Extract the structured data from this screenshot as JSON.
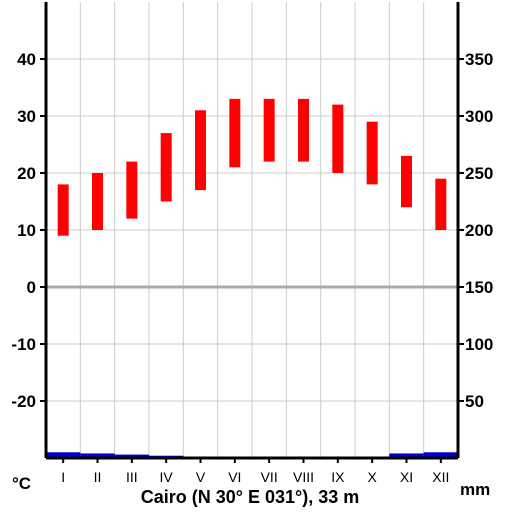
{
  "chart_data": {
    "type": "bar",
    "title": "Cairo (N 30° E 031°), 33 m",
    "left_unit": "°C",
    "right_unit": "mm",
    "categories": [
      "I",
      "II",
      "III",
      "IV",
      "V",
      "VI",
      "VII",
      "VIII",
      "IX",
      "X",
      "XI",
      "XII"
    ],
    "left_axis": {
      "ticks": [
        -20,
        -10,
        0,
        10,
        20,
        30,
        40
      ],
      "range": [
        -30,
        50
      ]
    },
    "right_axis": {
      "ticks": [
        50,
        100,
        150,
        200,
        250,
        300,
        350
      ],
      "range": [
        0,
        400
      ]
    },
    "grid": true,
    "zero_line": 0,
    "series": [
      {
        "type": "range-bar",
        "axis": "left",
        "color": "#ff0000",
        "low": [
          9,
          10,
          12,
          15,
          17,
          21,
          22,
          22,
          20,
          18,
          14,
          10
        ],
        "high": [
          18,
          20,
          22,
          27,
          31,
          33,
          33,
          33,
          32,
          29,
          23,
          19
        ]
      },
      {
        "type": "bar",
        "axis": "right",
        "color": "#0000cc",
        "values": [
          5,
          4,
          3,
          2,
          1,
          0,
          0,
          0,
          0,
          1,
          4,
          5
        ]
      }
    ]
  }
}
